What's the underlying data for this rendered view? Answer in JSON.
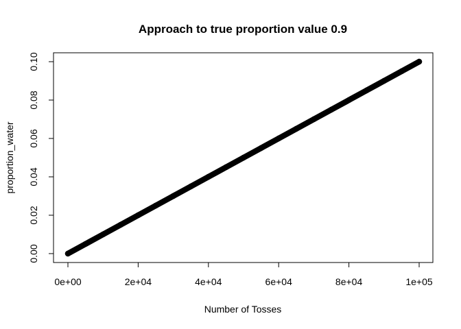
{
  "chart_data": {
    "type": "scatter",
    "title": "Approach to true proportion value 0.9",
    "xlabel": "Number of Tosses",
    "ylabel": "proportion_water",
    "xlim": [
      0,
      100000
    ],
    "ylim": [
      0,
      0.1
    ],
    "x_ticks": [
      0,
      20000,
      40000,
      60000,
      80000,
      100000
    ],
    "x_tick_labels": [
      "0e+00",
      "2e+04",
      "4e+04",
      "6e+04",
      "8e+04",
      "1e+05"
    ],
    "y_ticks": [
      0,
      0.02,
      0.04,
      0.06,
      0.08,
      0.1
    ],
    "y_tick_labels": [
      "0.00",
      "0.02",
      "0.04",
      "0.06",
      "0.08",
      "0.10"
    ],
    "grid": false,
    "point_color": "#000000",
    "series": [
      {
        "x": [
          0,
          5000,
          10000,
          15000,
          20000,
          25000,
          30000,
          35000,
          40000,
          45000,
          50000,
          55000,
          60000,
          65000,
          70000,
          75000,
          80000,
          85000,
          90000,
          95000,
          100000
        ],
        "values": [
          0,
          0.005,
          0.01,
          0.015,
          0.02,
          0.025,
          0.03,
          0.035,
          0.04,
          0.045,
          0.05,
          0.055,
          0.06,
          0.065,
          0.07,
          0.075,
          0.08,
          0.085,
          0.09,
          0.095,
          0.1
        ]
      }
    ]
  }
}
